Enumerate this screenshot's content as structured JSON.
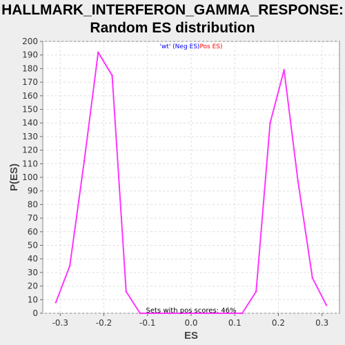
{
  "chart_data": {
    "type": "line",
    "title_line1": "HALLMARK_INTERFERON_GAMMA_RESPONSE:",
    "title_line2": "Random ES distribution",
    "xlabel": "ES",
    "ylabel": "P(ES)",
    "xlim": [
      -0.34,
      0.34
    ],
    "ylim": [
      0,
      200
    ],
    "xticks": [
      -0.3,
      -0.2,
      -0.1,
      0.0,
      0.1,
      0.2,
      0.3
    ],
    "yticks": [
      0,
      10,
      20,
      30,
      40,
      50,
      60,
      70,
      80,
      90,
      100,
      110,
      120,
      130,
      140,
      150,
      160,
      170,
      180,
      190,
      200
    ],
    "grid": true,
    "legend_placement": "top-center",
    "legend": [
      {
        "text": "'wt' (Neg ES)",
        "color": "#0000ff"
      },
      {
        "text": "Pos ES)",
        "color": "#ff0000"
      }
    ],
    "annotation": "Sets with pos scores: 46%",
    "series": [
      {
        "color": "#ff33ff",
        "x": [
          -0.31,
          -0.278,
          -0.245,
          -0.213,
          -0.181,
          -0.149,
          -0.117,
          -0.085,
          -0.05,
          0.0,
          0.05,
          0.085,
          0.117,
          0.149,
          0.181,
          0.213,
          0.245,
          0.278,
          0.31
        ],
        "y": [
          8,
          35,
          112,
          192,
          175,
          16,
          0,
          0,
          0,
          0,
          0,
          0,
          0,
          16,
          140,
          179,
          97,
          26,
          6
        ]
      }
    ]
  }
}
